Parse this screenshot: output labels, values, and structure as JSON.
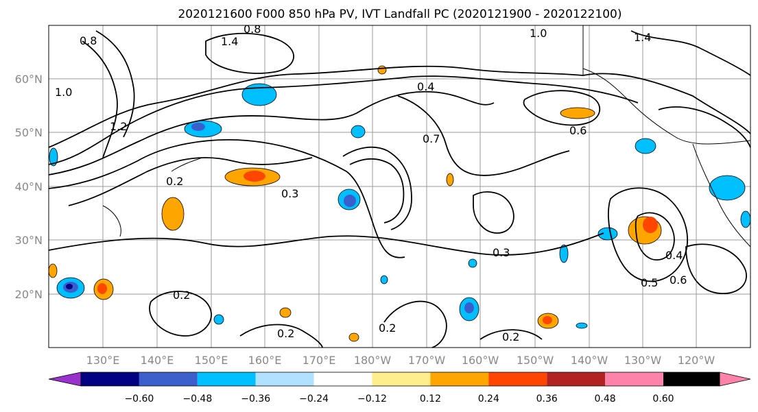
{
  "title": "2020121600 F000 850 hPa PV, IVT Landfall PC (2020121900 - 2020122100)",
  "map": {
    "lon_labels": [
      "130°E",
      "140°E",
      "150°E",
      "160°E",
      "170°E",
      "180°W",
      "170°W",
      "160°W",
      "150°W",
      "140°W",
      "130°W",
      "120°W"
    ],
    "lat_labels": [
      "60°N",
      "50°N",
      "40°N",
      "30°N",
      "20°N"
    ],
    "contour_labels": [
      {
        "text": "0.8"
      },
      {
        "text": "1.4"
      },
      {
        "text": "1.0"
      },
      {
        "text": "0.4"
      },
      {
        "text": "0.7"
      },
      {
        "text": "0.3"
      },
      {
        "text": "0.2"
      },
      {
        "text": "0.5"
      },
      {
        "text": "0.6"
      },
      {
        "text": "0.2"
      },
      {
        "text": "0.2"
      },
      {
        "text": "0.2"
      },
      {
        "text": "0.2"
      },
      {
        "text": "0.3"
      },
      {
        "text": "0.8"
      },
      {
        "text": "0.6"
      },
      {
        "text": "0.4"
      },
      {
        "text": "1.2"
      },
      {
        "text": "1.0"
      },
      {
        "text": "1.4"
      }
    ]
  },
  "colorbar": {
    "colors": [
      "#9932cc",
      "#000080",
      "#3a5fcd",
      "#00bfff",
      "#b0e2ff",
      "#ffffff",
      "#ffec8b",
      "#ffa500",
      "#ff4500",
      "#b22222",
      "#ff82ab"
    ],
    "ticks": [
      "−0.60",
      "−0.48",
      "−0.36",
      "−0.24",
      "−0.12",
      "0.12",
      "0.24",
      "0.36",
      "0.48",
      "0.60"
    ]
  }
}
